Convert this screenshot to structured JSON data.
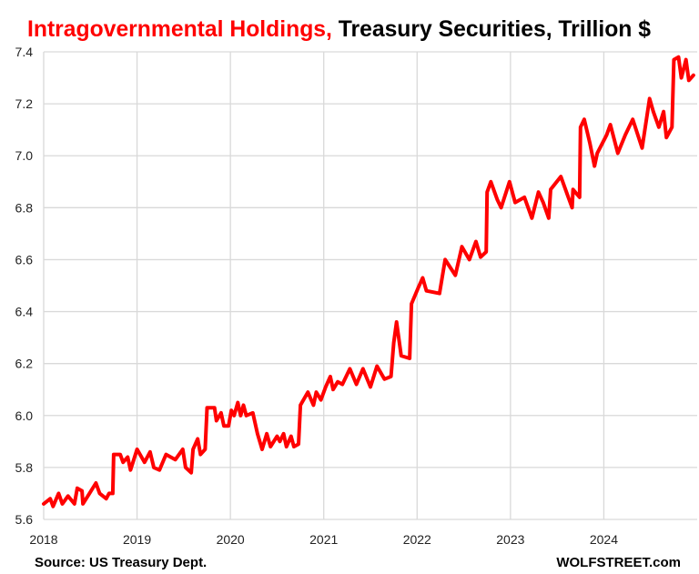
{
  "chart_data": {
    "type": "line",
    "title_highlight": "Intragovernmental Holdings,",
    "title_rest": " Treasury Securities, Trillion $",
    "source": "Source: US Treasury Dept.",
    "watermark": "WOLFSTREET.com",
    "xlabel": "",
    "ylabel": "",
    "ylim": [
      5.6,
      7.4
    ],
    "xlim": [
      2018,
      2025
    ],
    "y_ticks": [
      "5.6",
      "5.8",
      "6.0",
      "6.2",
      "6.4",
      "6.6",
      "6.8",
      "7.0",
      "7.2",
      "7.4"
    ],
    "x_ticks": [
      "2018",
      "2019",
      "2020",
      "2021",
      "2022",
      "2023",
      "2024"
    ],
    "grid": "on",
    "legend": "none",
    "colors": {
      "line": "#ff0000",
      "title_highlight": "#ff0000",
      "title": "#000000",
      "grid": "#d9d9d9"
    },
    "series": [
      {
        "x": [
          2018.0,
          2018.07,
          2018.1,
          2018.16,
          2018.2,
          2018.26,
          2018.33,
          2018.36,
          2018.41,
          2018.42,
          2018.49,
          2018.56,
          2018.6,
          2018.67,
          2018.7,
          2018.74,
          2018.75,
          2018.82,
          2018.85,
          2018.9,
          2018.93,
          2019.0,
          2019.08,
          2019.14,
          2019.18,
          2019.24,
          2019.31,
          2019.41,
          2019.49,
          2019.52,
          2019.58,
          2019.6,
          2019.65,
          2019.68,
          2019.73,
          2019.75,
          2019.83,
          2019.85,
          2019.9,
          2019.93,
          2019.98,
          2020.01,
          2020.04,
          2020.08,
          2020.11,
          2020.14,
          2020.17,
          2020.24,
          2020.29,
          2020.34,
          2020.39,
          2020.43,
          2020.5,
          2020.53,
          2020.57,
          2020.6,
          2020.65,
          2020.68,
          2020.73,
          2020.75,
          2020.83,
          2020.89,
          2020.92,
          2020.97,
          2021.02,
          2021.07,
          2021.1,
          2021.15,
          2021.2,
          2021.28,
          2021.35,
          2021.42,
          2021.5,
          2021.57,
          2021.65,
          2021.72,
          2021.75,
          2021.78,
          2021.83,
          2021.92,
          2021.94,
          2022.01,
          2022.06,
          2022.1,
          2022.24,
          2022.3,
          2022.41,
          2022.48,
          2022.56,
          2022.63,
          2022.68,
          2022.74,
          2022.75,
          2022.79,
          2022.86,
          2022.9,
          2022.99,
          2023.05,
          2023.15,
          2023.23,
          2023.3,
          2023.35,
          2023.41,
          2023.43,
          2023.54,
          2023.61,
          2023.66,
          2023.67,
          2023.74,
          2023.75,
          2023.79,
          2023.85,
          2023.9,
          2023.93,
          2024.03,
          2024.07,
          2024.15,
          2024.23,
          2024.31,
          2024.41,
          2024.49,
          2024.53,
          2024.59,
          2024.64,
          2024.67,
          2024.73,
          2024.75,
          2024.8,
          2024.83,
          2024.88,
          2024.91,
          2024.96
        ],
        "y": [
          5.66,
          5.68,
          5.65,
          5.7,
          5.66,
          5.69,
          5.66,
          5.72,
          5.71,
          5.66,
          5.7,
          5.74,
          5.7,
          5.68,
          5.7,
          5.7,
          5.85,
          5.85,
          5.82,
          5.84,
          5.79,
          5.87,
          5.82,
          5.86,
          5.8,
          5.79,
          5.85,
          5.83,
          5.87,
          5.8,
          5.78,
          5.87,
          5.91,
          5.85,
          5.87,
          6.03,
          6.03,
          5.98,
          6.01,
          5.96,
          5.96,
          6.02,
          6.0,
          6.05,
          6.0,
          6.04,
          6.0,
          6.01,
          5.93,
          5.87,
          5.93,
          5.88,
          5.92,
          5.9,
          5.93,
          5.88,
          5.92,
          5.88,
          5.89,
          6.04,
          6.09,
          6.04,
          6.09,
          6.06,
          6.11,
          6.15,
          6.1,
          6.13,
          6.12,
          6.18,
          6.12,
          6.18,
          6.11,
          6.19,
          6.14,
          6.15,
          6.28,
          6.36,
          6.23,
          6.22,
          6.43,
          6.49,
          6.53,
          6.48,
          6.47,
          6.6,
          6.54,
          6.65,
          6.6,
          6.67,
          6.61,
          6.63,
          6.86,
          6.9,
          6.83,
          6.8,
          6.9,
          6.82,
          6.84,
          6.76,
          6.86,
          6.82,
          6.76,
          6.87,
          6.92,
          6.85,
          6.8,
          6.87,
          6.84,
          7.11,
          7.14,
          7.05,
          6.96,
          7.01,
          7.08,
          7.12,
          7.01,
          7.08,
          7.14,
          7.03,
          7.22,
          7.17,
          7.11,
          7.17,
          7.07,
          7.11,
          7.37,
          7.38,
          7.3,
          7.37,
          7.29,
          7.31
        ]
      }
    ]
  }
}
